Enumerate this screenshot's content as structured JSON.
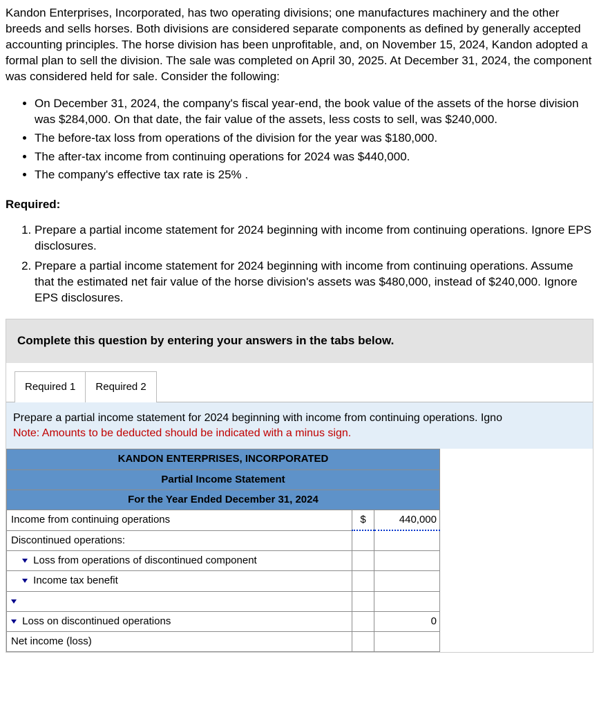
{
  "intro": "Kandon Enterprises, Incorporated, has two operating divisions; one manufactures machinery and the other breeds and sells horses. Both divisions are considered separate components as defined by generally accepted accounting principles. The horse division has been unprofitable, and, on November 15, 2024, Kandon adopted a formal plan to sell the division. The sale was completed on April 30, 2025. At December 31, 2024, the component was considered held for sale. Consider the following:",
  "bullets": [
    "On December 31, 2024, the company's fiscal year-end, the book value of the assets of the horse division was $284,000. On that date, the fair value of the assets, less costs to sell, was $240,000.",
    "The before-tax loss from operations of the division for the year was $180,000.",
    "The after-tax income from continuing operations for 2024 was $440,000.",
    "The company's effective tax rate is 25% ."
  ],
  "required_heading": "Required:",
  "required_items": [
    "Prepare a partial income statement for 2024 beginning with income from continuing operations. Ignore EPS disclosures.",
    "Prepare a partial income statement for 2024 beginning with income from continuing operations. Assume that the estimated net fair value of the horse division's assets was $480,000, instead of $240,000. Ignore EPS disclosures."
  ],
  "banner": "Complete this question by entering your answers in the tabs below.",
  "tabs": {
    "req1": "Required 1",
    "req2": "Required 2"
  },
  "prompt_main": "Prepare a partial income statement for 2024 beginning with income from continuing operations. Igno",
  "prompt_note": "Note: Amounts to be deducted should be indicated with a minus sign.",
  "statement": {
    "company": "KANDON ENTERPRISES, INCORPORATED",
    "title": "Partial Income Statement",
    "period": "For the Year Ended December 31, 2024",
    "rows": {
      "r1_label": "Income from continuing operations",
      "r1_sym": "$",
      "r1_val": "440,000",
      "r2_label": "Discontinued operations:",
      "r3_label": "Loss from operations of discontinued component",
      "r4_label": "Income tax benefit",
      "r5_label": "",
      "r6_label": "Loss on discontinued operations",
      "r6_val": "0",
      "r7_label": "Net income (loss)"
    }
  }
}
